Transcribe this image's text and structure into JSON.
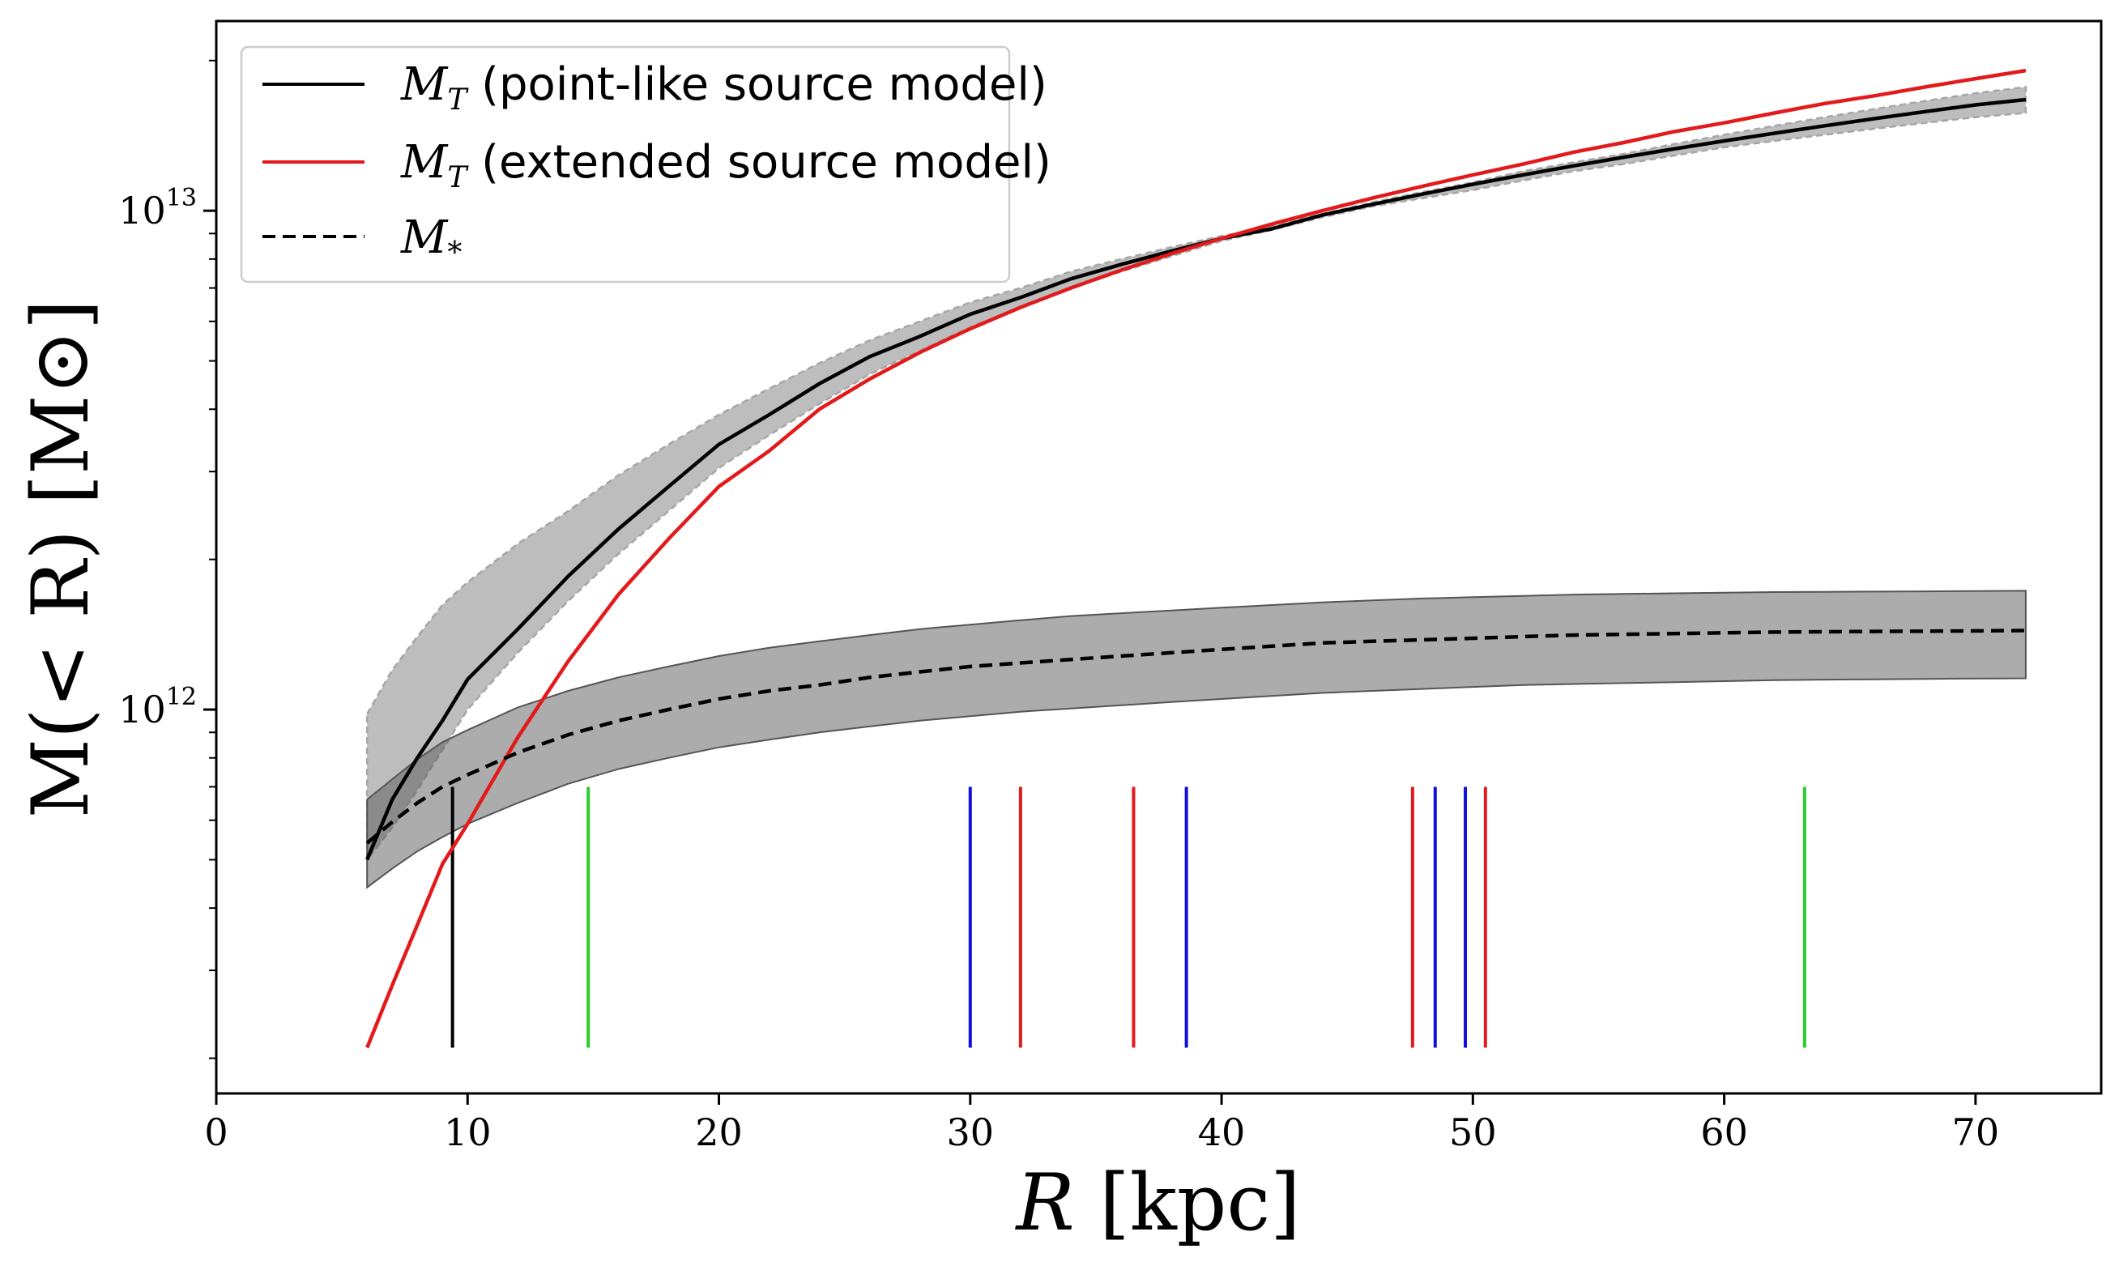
{
  "chart_data": {
    "type": "line",
    "title": "",
    "xlabel_var": "R",
    "xlabel_unit": " [kpc]",
    "ylabel": "M(< R) [M⊙]",
    "xscale": "linear",
    "yscale": "log",
    "xlim": [
      0,
      75
    ],
    "ylim": [
      170000000000,
      24000000000000
    ],
    "xticks": [
      0,
      10,
      20,
      30,
      40,
      50,
      60,
      70
    ],
    "xtick_labels": [
      "0",
      "10",
      "20",
      "30",
      "40",
      "50",
      "60",
      "70"
    ],
    "yticks": [
      {
        "value": 1000000000000,
        "base": "10",
        "exp": "12"
      },
      {
        "value": 10000000000000,
        "base": "10",
        "exp": "13"
      }
    ],
    "legend_position": "top-left",
    "legend": [
      {
        "var": "M",
        "sub": "T",
        "text": " (point-like source model)",
        "color": "#000000",
        "style": "solid"
      },
      {
        "var": "M",
        "sub": "T",
        "text": " (extended source model)",
        "color": "#e31a1c",
        "style": "solid"
      },
      {
        "var": "M",
        "sub": "*",
        "text": "",
        "color": "#000000",
        "style": "dashed"
      }
    ],
    "x": [
      6,
      7,
      8,
      9,
      10,
      12,
      14,
      16,
      18,
      20,
      22,
      24,
      26,
      28,
      30,
      32,
      34,
      36,
      38,
      40,
      42,
      44,
      46,
      48,
      50,
      52,
      54,
      56,
      58,
      60,
      62,
      64,
      66,
      68,
      70,
      72
    ],
    "series": [
      {
        "name": "M_T (point-like source model)",
        "color": "#000000",
        "style": "solid",
        "values": [
          500000000000.0,
          660000000000.0,
          800000000000.0,
          950000000000.0,
          1150000000000.0,
          1450000000000.0,
          1850000000000.0,
          2300000000000.0,
          2800000000000.0,
          3400000000000.0,
          3900000000000.0,
          4500000000000.0,
          5100000000000.0,
          5600000000000.0,
          6200000000000.0,
          6700000000000.0,
          7300000000000.0,
          7800000000000.0,
          8300000000000.0,
          8800000000000.0,
          9200000000000.0,
          9800000000000.0,
          10300000000000.0,
          10800000000000.0,
          11300000000000.0,
          11800000000000.0,
          12300000000000.0,
          12800000000000.0,
          13300000000000.0,
          13800000000000.0,
          14300000000000.0,
          14800000000000.0,
          15300000000000.0,
          15800000000000.0,
          16300000000000.0,
          16700000000000.0
        ],
        "band_lower": [
          500000000000.0,
          580000000000.0,
          690000000000.0,
          830000000000.0,
          1000000000000.0,
          1300000000000.0,
          1650000000000.0,
          2050000000000.0,
          2500000000000.0,
          3050000000000.0,
          3550000000000.0,
          4100000000000.0,
          4700000000000.0,
          5250000000000.0,
          5850000000000.0,
          6400000000000.0,
          7000000000000.0,
          7550000000000.0,
          8100000000000.0,
          8700000000000.0,
          9150000000000.0,
          9700000000000.0,
          10200000000000.0,
          10600000000000.0,
          11000000000000.0,
          11500000000000.0,
          12000000000000.0,
          12400000000000.0,
          12900000000000.0,
          13400000000000.0,
          13800000000000.0,
          14200000000000.0,
          14600000000000.0,
          15000000000000.0,
          15400000000000.0,
          15700000000000.0
        ],
        "band_upper": [
          980000000000.0,
          1200000000000.0,
          1400000000000.0,
          1620000000000.0,
          1800000000000.0,
          2150000000000.0,
          2500000000000.0,
          2950000000000.0,
          3400000000000.0,
          3900000000000.0,
          4400000000000.0,
          4950000000000.0,
          5500000000000.0,
          6000000000000.0,
          6550000000000.0,
          7000000000000.0,
          7550000000000.0,
          8000000000000.0,
          8450000000000.0,
          8900000000000.0,
          9300000000000.0,
          9850000000000.0,
          10400000000000.0,
          10900000000000.0,
          11400000000000.0,
          12000000000000.0,
          12500000000000.0,
          13000000000000.0,
          13600000000000.0,
          14200000000000.0,
          14800000000000.0,
          15400000000000.0,
          16000000000000.0,
          16600000000000.0,
          17200000000000.0,
          17700000000000.0
        ]
      },
      {
        "name": "M_T (extended source model)",
        "color": "#e31a1c",
        "style": "solid",
        "values": [
          210000000000.0,
          280000000000.0,
          370000000000.0,
          490000000000.0,
          590000000000.0,
          880000000000.0,
          1250000000000.0,
          1700000000000.0,
          2200000000000.0,
          2800000000000.0,
          3300000000000.0,
          4000000000000.0,
          4600000000000.0,
          5200000000000.0,
          5800000000000.0,
          6400000000000.0,
          7000000000000.0,
          7600000000000.0,
          8200000000000.0,
          8800000000000.0,
          9400000000000.0,
          10000000000000.0,
          10600000000000.0,
          11200000000000.0,
          11800000000000.0,
          12400000000000.0,
          13100000000000.0,
          13700000000000.0,
          14400000000000.0,
          15000000000000.0,
          15700000000000.0,
          16400000000000.0,
          17000000000000.0,
          17700000000000.0,
          18400000000000.0,
          19100000000000.0
        ]
      },
      {
        "name": "M_*",
        "color": "#000000",
        "style": "dashed",
        "values": [
          540000000000.0,
          595000000000.0,
          650000000000.0,
          700000000000.0,
          740000000000.0,
          820000000000.0,
          890000000000.0,
          950000000000.0,
          1000000000000.0,
          1050000000000.0,
          1090000000000.0,
          1120000000000.0,
          1160000000000.0,
          1190000000000.0,
          1220000000000.0,
          1240000000000.0,
          1260000000000.0,
          1280000000000.0,
          1300000000000.0,
          1320000000000.0,
          1340000000000.0,
          1360000000000.0,
          1370000000000.0,
          1380000000000.0,
          1390000000000.0,
          1400000000000.0,
          1410000000000.0,
          1415000000000.0,
          1420000000000.0,
          1425000000000.0,
          1430000000000.0,
          1432000000000.0,
          1434000000000.0,
          1436000000000.0,
          1438000000000.0,
          1440000000000.0
        ],
        "band_lower": [
          440000000000.0,
          480000000000.0,
          520000000000.0,
          555000000000.0,
          590000000000.0,
          650000000000.0,
          710000000000.0,
          760000000000.0,
          800000000000.0,
          840000000000.0,
          870000000000.0,
          900000000000.0,
          925000000000.0,
          950000000000.0,
          970000000000.0,
          990000000000.0,
          1005000000000.0,
          1020000000000.0,
          1035000000000.0,
          1050000000000.0,
          1065000000000.0,
          1080000000000.0,
          1090000000000.0,
          1100000000000.0,
          1110000000000.0,
          1120000000000.0,
          1125000000000.0,
          1130000000000.0,
          1135000000000.0,
          1140000000000.0,
          1145000000000.0,
          1148000000000.0,
          1150000000000.0,
          1152000000000.0,
          1154000000000.0,
          1155000000000.0
        ],
        "band_upper": [
          660000000000.0,
          725000000000.0,
          795000000000.0,
          860000000000.0,
          910000000000.0,
          1010000000000.0,
          1090000000000.0,
          1160000000000.0,
          1220000000000.0,
          1280000000000.0,
          1330000000000.0,
          1370000000000.0,
          1410000000000.0,
          1450000000000.0,
          1480000000000.0,
          1510000000000.0,
          1540000000000.0,
          1560000000000.0,
          1580000000000.0,
          1600000000000.0,
          1620000000000.0,
          1640000000000.0,
          1655000000000.0,
          1670000000000.0,
          1680000000000.0,
          1690000000000.0,
          1700000000000.0,
          1705000000000.0,
          1710000000000.0,
          1715000000000.0,
          1720000000000.0,
          1722000000000.0,
          1724000000000.0,
          1726000000000.0,
          1728000000000.0,
          1730000000000.0
        ]
      }
    ],
    "markers": [
      {
        "x": 9.4,
        "color": "#000000"
      },
      {
        "x": 14.8,
        "color": "#2ecc2e"
      },
      {
        "x": 30.0,
        "color": "#1010dd"
      },
      {
        "x": 32.0,
        "color": "#e31a1c"
      },
      {
        "x": 36.5,
        "color": "#e31a1c"
      },
      {
        "x": 38.6,
        "color": "#1010dd"
      },
      {
        "x": 47.6,
        "color": "#e31a1c"
      },
      {
        "x": 48.5,
        "color": "#1010dd"
      },
      {
        "x": 49.7,
        "color": "#1010dd"
      },
      {
        "x": 50.5,
        "color": "#e31a1c"
      },
      {
        "x": 63.2,
        "color": "#2ecc2e"
      }
    ],
    "marker_ylim": [
      210000000000,
      700000000000
    ]
  }
}
